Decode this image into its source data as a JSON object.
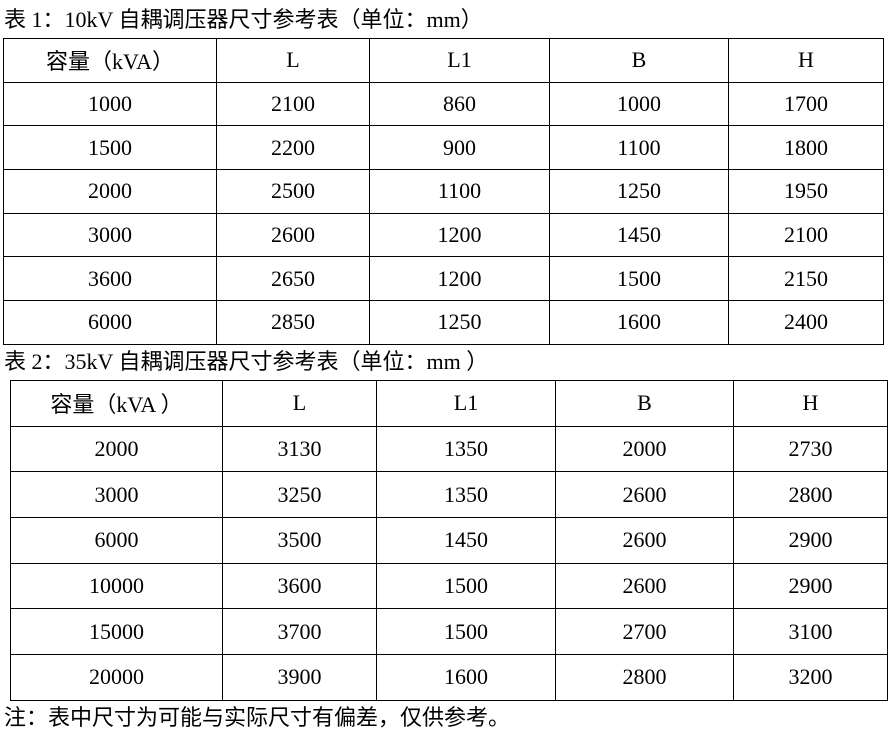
{
  "table1": {
    "title": "表 1：10kV 自耦调压器尺寸参考表（单位：mm）",
    "headers": [
      "容量（kVA）",
      "L",
      "L1",
      "B",
      "H"
    ],
    "rows": [
      [
        "1000",
        "2100",
        "860",
        "1000",
        "1700"
      ],
      [
        "1500",
        "2200",
        "900",
        "1100",
        "1800"
      ],
      [
        "2000",
        "2500",
        "1100",
        "1250",
        "1950"
      ],
      [
        "3000",
        "2600",
        "1200",
        "1450",
        "2100"
      ],
      [
        "3600",
        "2650",
        "1200",
        "1500",
        "2150"
      ],
      [
        "6000",
        "2850",
        "1250",
        "1600",
        "2400"
      ]
    ]
  },
  "table2": {
    "title": "表 2：35kV 自耦调压器尺寸参考表（单位：mm ）",
    "headers": [
      "容量（kVA ）",
      "L",
      "L1",
      "B",
      "H"
    ],
    "rows": [
      [
        "2000",
        "3130",
        "1350",
        "2000",
        "2730"
      ],
      [
        "3000",
        "3250",
        "1350",
        "2600",
        "2800"
      ],
      [
        "6000",
        "3500",
        "1450",
        "2600",
        "2900"
      ],
      [
        "10000",
        "3600",
        "1500",
        "2600",
        "2900"
      ],
      [
        "15000",
        "3700",
        "1500",
        "2700",
        "3100"
      ],
      [
        "20000",
        "3900",
        "1600",
        "2800",
        "3200"
      ]
    ]
  },
  "note": "注：表中尺寸为可能与实际尺寸有偏差，仅供参考。"
}
